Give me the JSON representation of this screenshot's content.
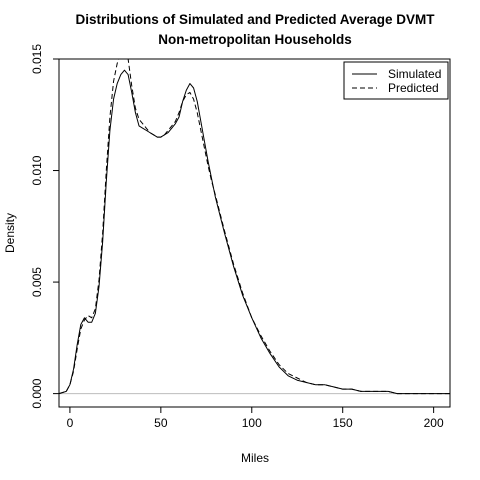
{
  "chart_data": {
    "type": "line",
    "title": "Distributions of Simulated and Predicted Average DVMT",
    "subtitle": "Non-metropolitan Households",
    "xlabel": "Miles",
    "ylabel": "Density",
    "xlim": [
      -6,
      209
    ],
    "ylim": [
      -0.0006,
      0.015
    ],
    "x_ticks": [
      0,
      50,
      100,
      150,
      200
    ],
    "x_tick_labels": [
      "0",
      "50",
      "100",
      "150",
      "200"
    ],
    "y_ticks": [
      0.0,
      0.005,
      0.01,
      0.015
    ],
    "y_tick_labels": [
      "0.000",
      "0.005",
      "0.010",
      "0.015"
    ],
    "grid": false,
    "legend_position": "top-right",
    "baseline": 0,
    "series": [
      {
        "name": "Simulated",
        "line_style": "solid",
        "x": [
          -6,
          -2,
          0,
          2,
          4,
          6,
          8,
          10,
          12,
          14,
          16,
          18,
          20,
          22,
          24,
          26,
          28,
          30,
          32,
          34,
          36,
          38,
          40,
          42,
          44,
          46,
          48,
          50,
          52,
          54,
          56,
          58,
          60,
          62,
          64,
          66,
          68,
          70,
          72,
          74,
          76,
          78,
          80,
          85,
          90,
          95,
          100,
          105,
          110,
          115,
          120,
          125,
          130,
          135,
          140,
          145,
          150,
          155,
          160,
          165,
          170,
          175,
          180,
          185,
          190,
          195,
          200,
          205,
          209
        ],
        "y": [
          0.0,
          0.0001,
          0.0004,
          0.0011,
          0.0022,
          0.0031,
          0.0034,
          0.0032,
          0.0032,
          0.0036,
          0.0048,
          0.0068,
          0.0095,
          0.0118,
          0.0132,
          0.0139,
          0.0143,
          0.0145,
          0.0143,
          0.0135,
          0.0126,
          0.012,
          0.0119,
          0.0118,
          0.0117,
          0.0116,
          0.0115,
          0.0115,
          0.0116,
          0.0117,
          0.0119,
          0.0121,
          0.0124,
          0.0131,
          0.0136,
          0.0139,
          0.0137,
          0.0131,
          0.0122,
          0.0113,
          0.0104,
          0.0096,
          0.0088,
          0.0072,
          0.0057,
          0.0044,
          0.0034,
          0.0025,
          0.0018,
          0.0012,
          0.0008,
          0.0006,
          0.0005,
          0.0004,
          0.0004,
          0.0003,
          0.0002,
          0.0002,
          0.0001,
          0.0001,
          0.0001,
          0.0001,
          0.0,
          0.0,
          0.0,
          0.0,
          0.0,
          0.0,
          0.0
        ]
      },
      {
        "name": "Predicted",
        "line_style": "dashed",
        "x": [
          -6,
          -2,
          0,
          2,
          4,
          6,
          8,
          10,
          12,
          14,
          16,
          18,
          20,
          22,
          24,
          26,
          28,
          30,
          32,
          34,
          36,
          38,
          40,
          42,
          44,
          46,
          48,
          50,
          52,
          54,
          56,
          58,
          60,
          62,
          64,
          66,
          68,
          70,
          72,
          74,
          76,
          78,
          80,
          85,
          90,
          95,
          100,
          105,
          110,
          115,
          120,
          125,
          130,
          135,
          140,
          145,
          150,
          155,
          160,
          165,
          170,
          175,
          180,
          185,
          190,
          195,
          200,
          205,
          209
        ],
        "y": [
          0.0,
          0.0001,
          0.0004,
          0.001,
          0.002,
          0.0029,
          0.0033,
          0.0035,
          0.0034,
          0.0038,
          0.0051,
          0.0072,
          0.01,
          0.0124,
          0.014,
          0.0148,
          0.0153,
          0.0155,
          0.015,
          0.0138,
          0.0128,
          0.0123,
          0.0121,
          0.0119,
          0.0117,
          0.0116,
          0.0115,
          0.0115,
          0.0116,
          0.0118,
          0.012,
          0.0122,
          0.0126,
          0.0131,
          0.0134,
          0.0135,
          0.0132,
          0.0126,
          0.0118,
          0.011,
          0.0102,
          0.0095,
          0.0089,
          0.0073,
          0.0058,
          0.0045,
          0.0034,
          0.0026,
          0.0019,
          0.0013,
          0.0009,
          0.0007,
          0.0005,
          0.0004,
          0.0004,
          0.0003,
          0.0002,
          0.0002,
          0.0001,
          0.0001,
          0.0001,
          0.0001,
          0.0,
          0.0,
          0.0,
          0.0,
          0.0,
          0.0,
          0.0
        ]
      }
    ]
  }
}
